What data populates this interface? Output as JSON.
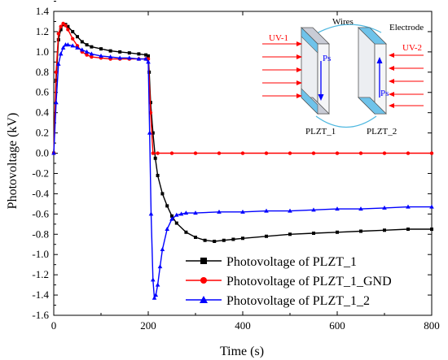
{
  "chart_data": {
    "type": "line",
    "xlabel": "Time (s)",
    "ylabel": "Photovoltage (kV)",
    "xlim": [
      0,
      800
    ],
    "ylim": [
      -1.6,
      1.4
    ],
    "xticks": [
      0,
      200,
      400,
      600,
      800
    ],
    "yticks": [
      -1.6,
      -1.4,
      -1.2,
      -1.0,
      -0.8,
      -0.6,
      -0.4,
      -0.2,
      0.0,
      0.2,
      0.4,
      0.6,
      0.8,
      1.0,
      1.2,
      1.4
    ],
    "grid": false,
    "legend_position": "bottom-right",
    "series": [
      {
        "name": "Photovoltage of PLZT_1",
        "color": "#000000",
        "marker": "square",
        "x": [
          0,
          5,
          10,
          15,
          20,
          25,
          30,
          40,
          50,
          60,
          70,
          80,
          100,
          120,
          140,
          160,
          180,
          195,
          200,
          202,
          205,
          210,
          215,
          220,
          230,
          240,
          250,
          260,
          280,
          300,
          320,
          340,
          360,
          380,
          400,
          450,
          500,
          550,
          600,
          650,
          700,
          750,
          800
        ],
        "y": [
          0,
          0.72,
          1.12,
          1.22,
          1.27,
          1.27,
          1.25,
          1.2,
          1.15,
          1.1,
          1.07,
          1.05,
          1.03,
          1.01,
          1.0,
          0.99,
          0.98,
          0.97,
          0.96,
          0.8,
          0.5,
          0.2,
          -0.05,
          -0.22,
          -0.4,
          -0.52,
          -0.62,
          -0.69,
          -0.78,
          -0.83,
          -0.86,
          -0.87,
          -0.86,
          -0.85,
          -0.84,
          -0.82,
          -0.8,
          -0.79,
          -0.78,
          -0.77,
          -0.76,
          -0.75,
          -0.75
        ]
      },
      {
        "name": "Photovoltage of PLZT_1_GND",
        "color": "#ff0000",
        "marker": "circle",
        "x": [
          0,
          5,
          10,
          15,
          20,
          25,
          30,
          40,
          50,
          60,
          70,
          80,
          100,
          120,
          140,
          160,
          180,
          195,
          200,
          205,
          210,
          220,
          250,
          300,
          350,
          400,
          450,
          500,
          550,
          600,
          650,
          700,
          750,
          800
        ],
        "y": [
          0,
          0.8,
          1.18,
          1.25,
          1.28,
          1.26,
          1.22,
          1.13,
          1.06,
          1.0,
          0.97,
          0.95,
          0.94,
          0.93,
          0.93,
          0.93,
          0.93,
          0.93,
          0.93,
          0.4,
          0.0,
          0.0,
          0.0,
          0.0,
          0.0,
          0.0,
          0.0,
          0.0,
          0.0,
          0.0,
          0.0,
          0.0,
          0.0,
          0.0
        ]
      },
      {
        "name": "Photovoltage of PLZT_1_2",
        "color": "#0000ff",
        "marker": "triangle",
        "x": [
          0,
          5,
          10,
          15,
          20,
          25,
          30,
          40,
          50,
          60,
          70,
          80,
          100,
          120,
          140,
          160,
          180,
          195,
          200,
          203,
          206,
          210,
          213,
          216,
          220,
          225,
          230,
          240,
          250,
          260,
          270,
          280,
          300,
          350,
          400,
          450,
          500,
          550,
          600,
          650,
          700,
          750,
          800
        ],
        "y": [
          0,
          0.5,
          0.88,
          0.98,
          1.04,
          1.07,
          1.07,
          1.06,
          1.04,
          1.02,
          1.0,
          0.98,
          0.96,
          0.95,
          0.94,
          0.94,
          0.93,
          0.93,
          0.9,
          0.2,
          -0.6,
          -1.25,
          -1.43,
          -1.4,
          -1.3,
          -1.12,
          -0.95,
          -0.75,
          -0.65,
          -0.61,
          -0.6,
          -0.59,
          -0.59,
          -0.58,
          -0.58,
          -0.57,
          -0.57,
          -0.56,
          -0.55,
          -0.55,
          -0.54,
          -0.53,
          -0.53
        ]
      }
    ]
  },
  "inset": {
    "uv_left_label": "UV-1",
    "uv_right_label": "UV-2",
    "wires_label": "Wires",
    "electrode_label": "Electrode",
    "ps_label": "Ps",
    "sample1_label": "PLZT_1",
    "sample2_label": "PLZT_2",
    "uv_color": "#ff0000",
    "arrow_color": "#0000ff",
    "wire_color": "#4fb8e0"
  }
}
